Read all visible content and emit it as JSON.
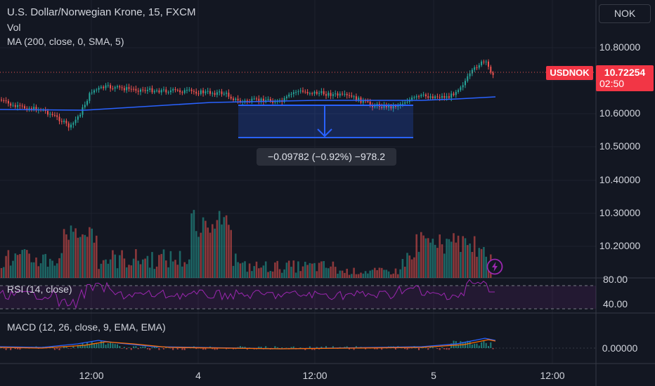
{
  "header": {
    "symbol_title": "U.S. Dollar/Norwegian Krone, 15, FXCM",
    "vol_label": "Vol",
    "ma_label": "MA (200, close, 0, SMA, 5)",
    "currency_button": "NOK"
  },
  "price_axis": {
    "ticks": [
      "10.80000",
      "10.70000",
      "10.60000",
      "10.50000",
      "10.40000",
      "10.30000",
      "10.20000"
    ],
    "symbol_tag": "USDNOK",
    "last_price": "10.72254",
    "countdown": "02:50"
  },
  "measure_tool": {
    "label": "−0.09782 (−0.92%) −978.2"
  },
  "rsi_pane": {
    "label": "RSI (14, close)",
    "ticks": [
      "80.00",
      "40.00"
    ]
  },
  "macd_pane": {
    "label": "MACD (12, 26, close, 9, EMA, EMA)",
    "tick": "0.00000"
  },
  "time_axis": {
    "ticks": [
      "12:00",
      "4",
      "12:00",
      "5",
      "12:00"
    ]
  },
  "colors": {
    "background": "#131722",
    "up": "#26a69a",
    "down": "#ef5350",
    "ma": "#2962ff",
    "rsi": "#9c27b0",
    "accent": "#f23645"
  },
  "icons": {
    "alert": "lightning-bolt-icon"
  }
}
